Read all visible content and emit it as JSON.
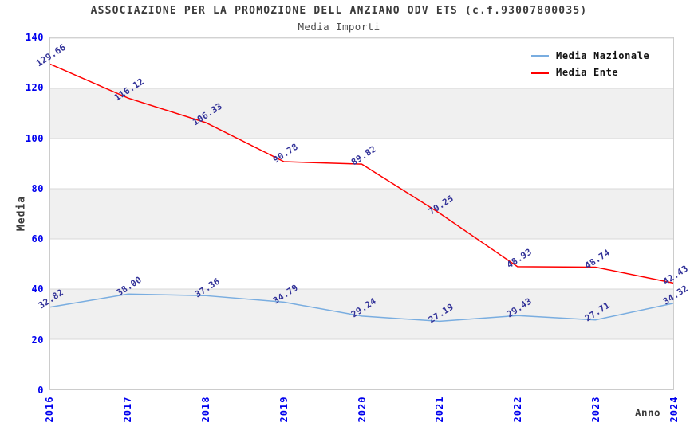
{
  "colors": {
    "title": "#3b3b3b",
    "subtitle": "#4d4d4d",
    "axis": "#3c3c3c",
    "tick": "#0000ee",
    "dlabel": "#333399",
    "band": "#f0f0f0",
    "grid": "#d9d9d9",
    "border": "#cccccc",
    "legend_text": "#111111"
  },
  "chart_data": {
    "type": "line",
    "title": "ASSOCIAZIONE PER LA PROMOZIONE DELL ANZIANO ODV ETS (c.f.93007800035)",
    "subtitle": "Media Importi",
    "xlabel": "Anno",
    "ylabel": "Media",
    "categories": [
      "2016",
      "2017",
      "2018",
      "2019",
      "2020",
      "2021",
      "2022",
      "2023",
      "2024"
    ],
    "series": [
      {
        "name": "Media Nazionale",
        "color": "#79ade0",
        "values": [
          32.82,
          38.0,
          37.36,
          34.79,
          29.24,
          27.19,
          29.43,
          27.71,
          34.32
        ]
      },
      {
        "name": "Media Ente",
        "color": "#ff0000",
        "values": [
          129.66,
          116.12,
          106.33,
          90.78,
          89.82,
          70.25,
          48.93,
          48.74,
          42.43
        ]
      }
    ],
    "ylim": [
      0,
      140
    ],
    "yticks": [
      0,
      20,
      40,
      60,
      80,
      100,
      120,
      140
    ],
    "grid": true,
    "band_fill": "alternate-horizontal",
    "legend_position": "top-right-inside",
    "data_labels": "values-2-decimals-rotated"
  }
}
